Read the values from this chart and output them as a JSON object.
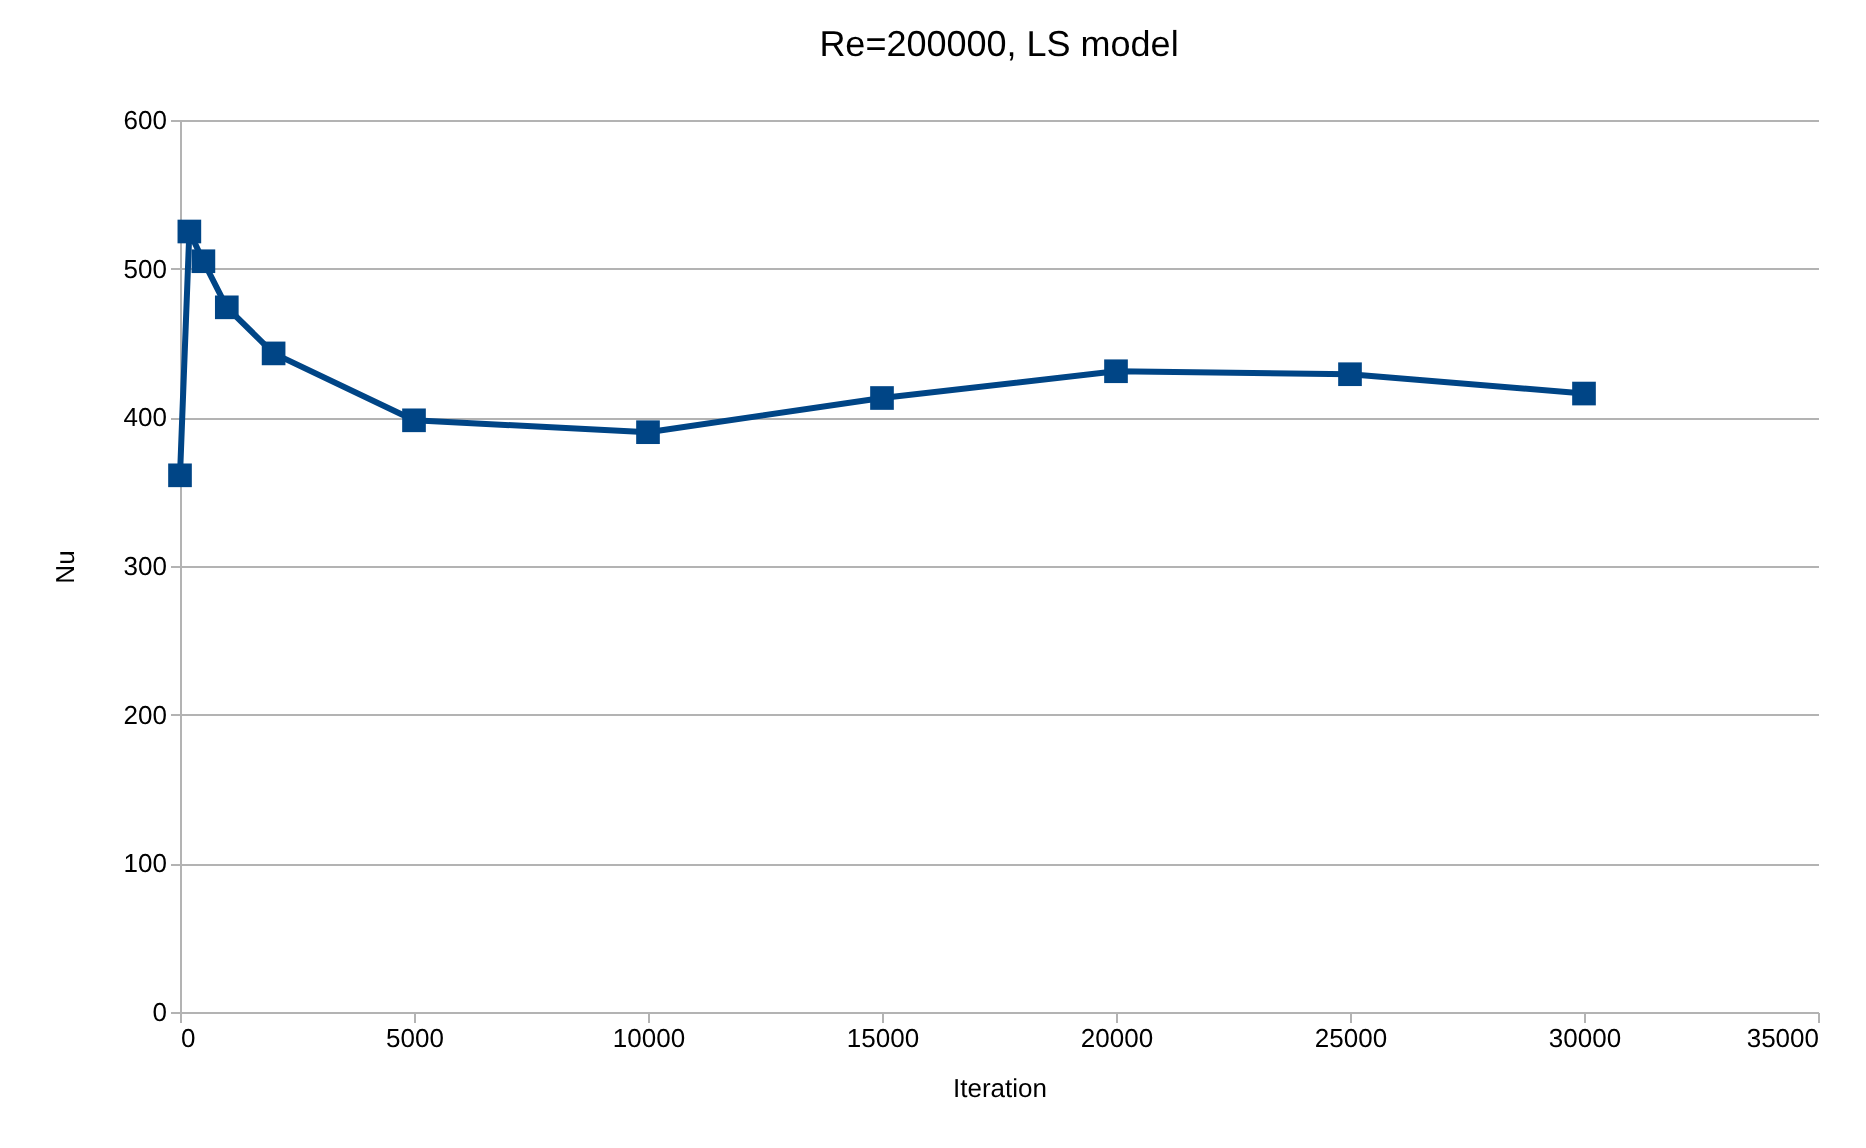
{
  "chart_data": {
    "type": "line",
    "title": "Re=200000, LS model",
    "xlabel": "Iteration",
    "ylabel": "Nu",
    "x": [
      0,
      200,
      500,
      1000,
      2000,
      5000,
      10000,
      15000,
      20000,
      25000,
      30000
    ],
    "series": [
      {
        "color": "#004586",
        "values": [
          361,
          525,
          505,
          474,
          443,
          398,
          390,
          413,
          431,
          429,
          416
        ]
      }
    ],
    "xlim": [
      0,
      35000
    ],
    "xticks": [
      0,
      5000,
      10000,
      15000,
      20000,
      25000,
      30000,
      35000
    ],
    "ylim": [
      0,
      600
    ],
    "yticks": [
      0,
      100,
      200,
      300,
      400,
      500,
      600
    ],
    "grid": "y",
    "marker": "square",
    "line_style": "solid"
  }
}
